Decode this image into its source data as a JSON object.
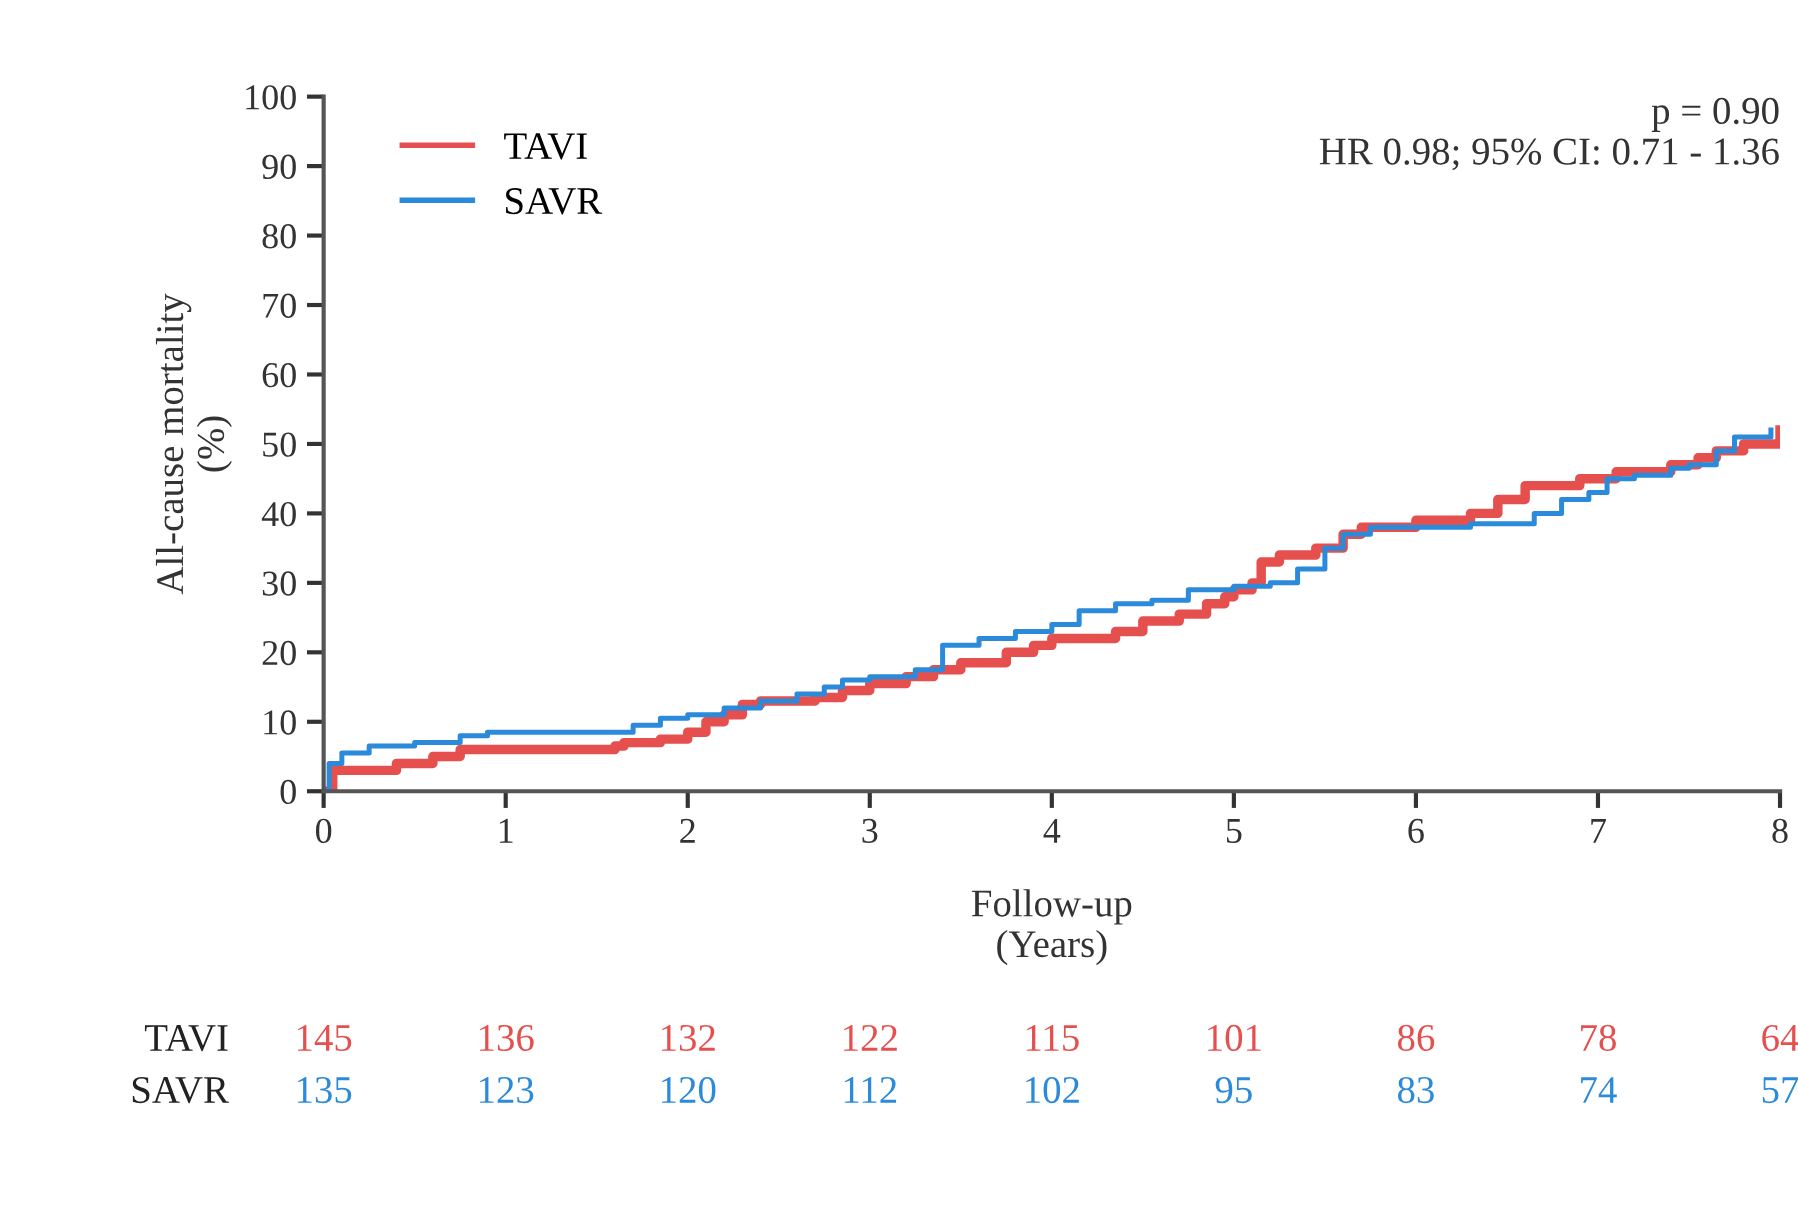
{
  "chart_data": {
    "type": "step",
    "xlabel": "Follow-up\n(Years)",
    "ylabel": "All-cause mortality\n(%)",
    "xlim": [
      0,
      8
    ],
    "xticks": [
      0,
      1,
      2,
      3,
      4,
      5,
      6,
      7,
      8
    ],
    "ylim": [
      0,
      100
    ],
    "yticks": [
      0,
      10,
      20,
      30,
      40,
      50,
      60,
      70,
      80,
      90,
      100
    ],
    "grid": false,
    "legend": "top left",
    "line_style": "solid",
    "series": [
      {
        "name": "TAVI",
        "color": "#e5504f",
        "x": [
          0,
          0.05,
          0.4,
          0.6,
          0.75,
          1.6,
          1.65,
          1.85,
          2.0,
          2.1,
          2.2,
          2.3,
          2.4,
          2.7,
          2.85,
          3.0,
          3.2,
          3.35,
          3.5,
          3.75,
          3.9,
          4.0,
          4.35,
          4.5,
          4.7,
          4.85,
          4.95,
          5.0,
          5.1,
          5.15,
          5.25,
          5.45,
          5.6,
          5.7,
          6.0,
          6.3,
          6.45,
          6.6,
          6.9,
          7.1,
          7.4,
          7.55,
          7.65,
          7.8,
          8.0
        ],
        "values": [
          0,
          3,
          4,
          5,
          6,
          6.5,
          7,
          7.5,
          8.5,
          10,
          11,
          12.5,
          13,
          13.5,
          14.5,
          15.5,
          16.5,
          17.5,
          18.5,
          20,
          21,
          22,
          23,
          24.5,
          25.5,
          27,
          28,
          29,
          30,
          33,
          34,
          35,
          37,
          38,
          39,
          40,
          42,
          44,
          45,
          46,
          47,
          48,
          49,
          50,
          52
        ]
      },
      {
        "name": "SAVR",
        "color": "#2b8ad9",
        "x": [
          0,
          0.03,
          0.1,
          0.25,
          0.5,
          0.75,
          0.9,
          1.7,
          1.85,
          2.0,
          2.2,
          2.4,
          2.6,
          2.75,
          2.85,
          3.0,
          3.25,
          3.4,
          3.6,
          3.8,
          4.0,
          4.15,
          4.35,
          4.55,
          4.75,
          5.0,
          5.2,
          5.35,
          5.5,
          5.6,
          5.75,
          6.3,
          6.65,
          6.8,
          6.95,
          7.05,
          7.2,
          7.4,
          7.5,
          7.65,
          7.75,
          7.95
        ],
        "values": [
          0,
          4,
          5.5,
          6.5,
          7,
          8,
          8.5,
          9.5,
          10.5,
          11,
          12,
          13,
          14,
          15,
          16,
          16.5,
          17.5,
          21,
          22,
          23,
          24,
          26,
          27,
          27.5,
          29,
          29.5,
          30,
          32,
          35,
          37,
          38,
          38.5,
          40,
          42,
          43,
          45,
          45.5,
          46.5,
          47,
          49,
          51,
          52
        ]
      }
    ],
    "annotations": [
      "p = 0.90",
      "HR 0.98; 95% CI: 0.71 - 1.36",
      "TAVI",
      "145",
      "136",
      "132",
      "122",
      "115",
      "101",
      "86",
      "78",
      "64",
      "SAVR",
      "135",
      "123",
      "120",
      "112",
      "102",
      "95",
      "83",
      "74",
      "57"
    ]
  }
}
